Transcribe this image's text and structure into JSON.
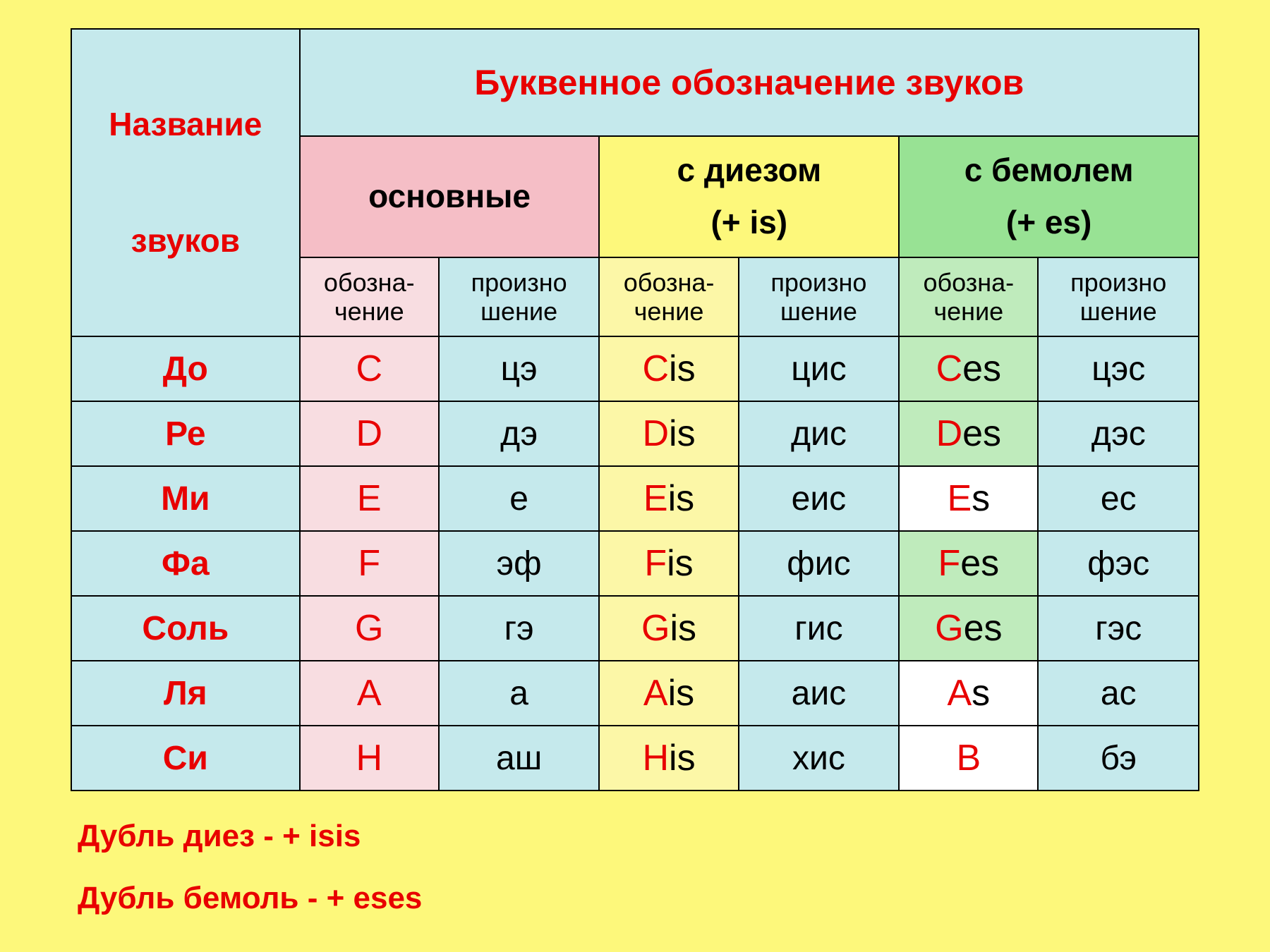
{
  "colors": {
    "page_bg": "#fdf87b",
    "cyan_bg": "#c5e9ec",
    "pink_hdr": "#f5bec6",
    "pink_cell": "#f8dde1",
    "yellow_hdr": "#fdf87b",
    "yellow_cell": "#fcf7a7",
    "green_hdr": "#98e294",
    "green_cell": "#bfebbc",
    "white_cell": "#ffffff",
    "red_text": "#e80000",
    "black_text": "#000000",
    "border": "#000000"
  },
  "typography": {
    "family": "Arial",
    "header_title_size": 50,
    "header_group_size": 46,
    "subheader_size": 36,
    "note_name_size": 48,
    "symbol_size": 52,
    "pron_size": 48,
    "footnote_size": 44
  },
  "headers": {
    "names_line1": "Название",
    "names_line2": "звуков",
    "title": "Буквенное обозначение звуков",
    "main": "основные",
    "sharp_line1": "с диезом",
    "sharp_line2": "(+ is)",
    "flat_line1": "с бемолем",
    "flat_line2": "(+ es)",
    "sub_sym_line1": "обозна-",
    "sub_sym_line2": "чение",
    "sub_pron_line1": "произно",
    "sub_pron_line2": "шение"
  },
  "rows": [
    {
      "name": "До",
      "main_L": "C",
      "main_sfx": "",
      "main_p": "цэ",
      "sh_L": "C",
      "sh_sfx": "is",
      "sh_p": "цис",
      "fl_L": "C",
      "fl_sfx": "es",
      "fl_p": "цэс",
      "fl_bg": "#bfebbc"
    },
    {
      "name": "Ре",
      "main_L": "D",
      "main_sfx": "",
      "main_p": "дэ",
      "sh_L": "D",
      "sh_sfx": "is",
      "sh_p": "дис",
      "fl_L": "D",
      "fl_sfx": "es",
      "fl_p": "дэс",
      "fl_bg": "#bfebbc"
    },
    {
      "name": "Ми",
      "main_L": "E",
      "main_sfx": "",
      "main_p": "е",
      "sh_L": "E",
      "sh_sfx": "is",
      "sh_p": "еис",
      "fl_L": "E",
      "fl_sfx": "s",
      "fl_p": "ес",
      "fl_bg": "#ffffff"
    },
    {
      "name": "Фа",
      "main_L": "F",
      "main_sfx": "",
      "main_p": "эф",
      "sh_L": "F",
      "sh_sfx": "is",
      "sh_p": "фис",
      "fl_L": "F",
      "fl_sfx": "es",
      "fl_p": "фэс",
      "fl_bg": "#bfebbc"
    },
    {
      "name": "Соль",
      "main_L": "G",
      "main_sfx": "",
      "main_p": "гэ",
      "sh_L": "G",
      "sh_sfx": "is",
      "sh_p": "гис",
      "fl_L": "G",
      "fl_sfx": "es",
      "fl_p": "гэс",
      "fl_bg": "#bfebbc"
    },
    {
      "name": "Ля",
      "main_L": "A",
      "main_sfx": "",
      "main_p": "а",
      "sh_L": "A",
      "sh_sfx": "is",
      "sh_p": "аис",
      "fl_L": "A",
      "fl_sfx": "s",
      "fl_p": "ас",
      "fl_bg": "#ffffff"
    },
    {
      "name": "Си",
      "main_L": "H",
      "main_sfx": "",
      "main_p": "аш",
      "sh_L": "H",
      "sh_sfx": "is",
      "sh_p": "хис",
      "fl_L": "B",
      "fl_sfx": "",
      "fl_p": "бэ",
      "fl_bg": "#ffffff"
    }
  ],
  "footnotes": {
    "line1": "Дубль диез - + isis",
    "line2": "Дубль бемоль  -  + eses"
  }
}
